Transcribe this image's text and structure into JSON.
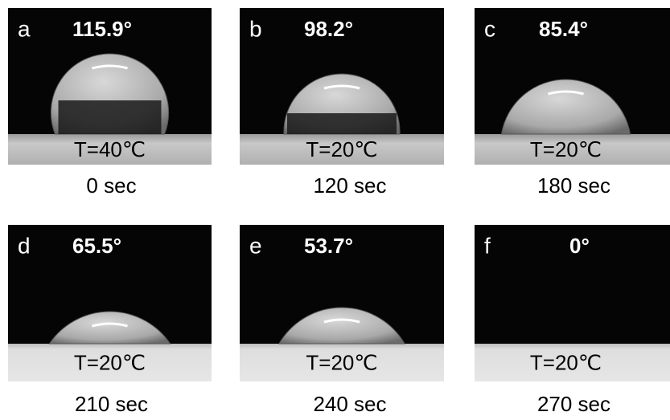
{
  "panels": [
    {
      "letter": "a",
      "angle": "115.9°",
      "temperature": "T=40℃",
      "time": "0 sec"
    },
    {
      "letter": "b",
      "angle": "98.2°",
      "temperature": "T=20℃",
      "time": "120 sec"
    },
    {
      "letter": "c",
      "angle": "85.4°",
      "temperature": "T=20℃",
      "time": "180 sec"
    },
    {
      "letter": "d",
      "angle": "65.5°",
      "temperature": "T=20℃",
      "time": "210 sec"
    },
    {
      "letter": "e",
      "angle": "53.7°",
      "temperature": "T=20℃",
      "time": "240 sec"
    },
    {
      "letter": "f",
      "angle": "0°",
      "temperature": "T=20℃",
      "time": "270 sec"
    }
  ]
}
